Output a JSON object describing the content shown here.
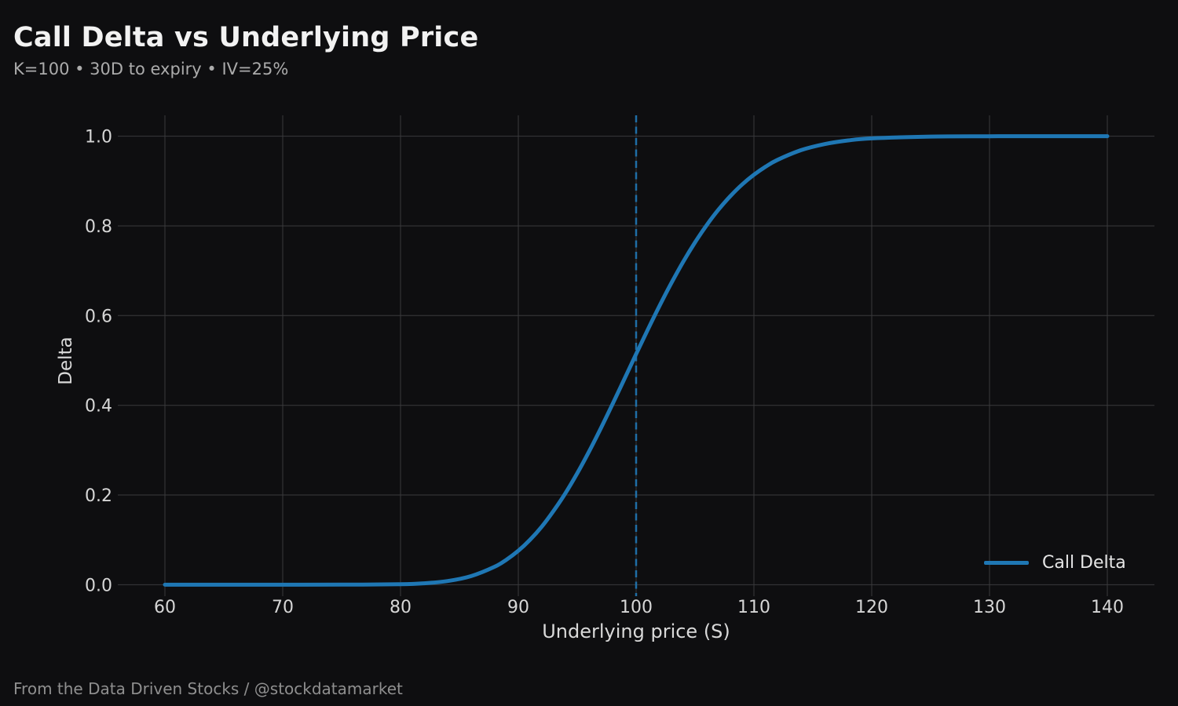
{
  "header": {
    "title": "Call Delta vs Underlying Price",
    "subtitle": "K=100 • 30D to expiry • IV=25%"
  },
  "footer": {
    "credit": "From the Data Driven Stocks / @stockdatamarket"
  },
  "colors": {
    "background": "#0e0e10",
    "curve_blue": "#1f77b4",
    "strike_line_blue": "#1f77b4",
    "gridline": "#3a3a3c",
    "title_text": "#f2f2f2",
    "subtitle_text": "#ababab",
    "tick_text": "#d6d6d6",
    "footer_text": "#8f8f8f"
  },
  "chart_data": {
    "type": "line",
    "title": "Call Delta vs Underlying Price",
    "subtitle": "K=100 • 30D to expiry • IV=25%",
    "xlabel": "Underlying price (S)",
    "ylabel": "Delta",
    "xlim": [
      56,
      144
    ],
    "ylim": [
      -0.05,
      1.05
    ],
    "xticks": [
      60,
      70,
      80,
      90,
      100,
      110,
      120,
      130,
      140
    ],
    "ytick_labels": [
      "0.0",
      "0.2",
      "0.4",
      "0.6",
      "0.8",
      "1.0"
    ],
    "yticks": [
      0.0,
      0.2,
      0.4,
      0.6,
      0.8,
      1.0
    ],
    "grid": true,
    "legend": {
      "position": "lower right",
      "entries": [
        "Call Delta"
      ]
    },
    "annotations": [
      {
        "type": "vline",
        "x": 100,
        "style": "dashed",
        "meaning": "strike K=100"
      }
    ],
    "series": [
      {
        "name": "Call Delta",
        "x": [
          60,
          65,
          70,
          75,
          80,
          82,
          84,
          86,
          88,
          89,
          90,
          91,
          92,
          93,
          94,
          95,
          96,
          97,
          98,
          99,
          100,
          101,
          102,
          103,
          104,
          105,
          106,
          107,
          108,
          109,
          110,
          111,
          112,
          114,
          116,
          118,
          120,
          125,
          130,
          135,
          140
        ],
        "y": [
          0.0,
          0.0,
          0.0,
          0.0001,
          0.001,
          0.0031,
          0.0083,
          0.0193,
          0.0403,
          0.0559,
          0.0758,
          0.1003,
          0.1298,
          0.165,
          0.2041,
          0.2483,
          0.2968,
          0.3486,
          0.4028,
          0.4584,
          0.5143,
          0.5693,
          0.6225,
          0.673,
          0.7201,
          0.7632,
          0.802,
          0.8365,
          0.8664,
          0.8922,
          0.914,
          0.9321,
          0.9471,
          0.9688,
          0.9824,
          0.9905,
          0.9951,
          0.9992,
          0.9999,
          1.0,
          1.0
        ]
      }
    ]
  }
}
